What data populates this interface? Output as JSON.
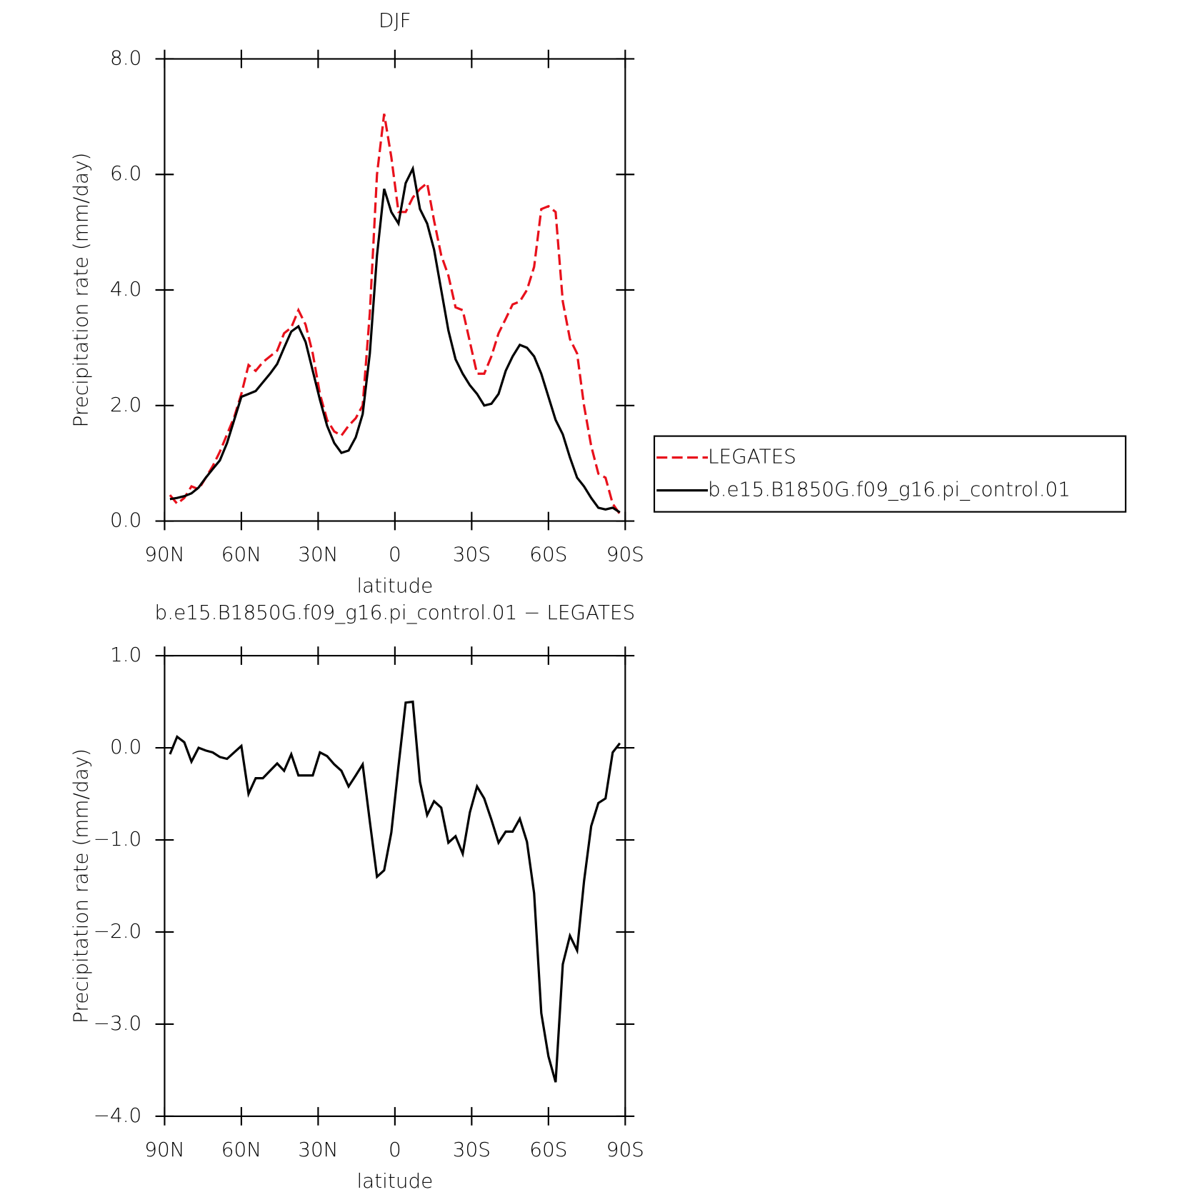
{
  "chart_data": [
    {
      "type": "line",
      "title": "DJF",
      "x_label": "latitude",
      "y_label": "Precipitation rate (mm/day)",
      "x": [
        87.9,
        85.1,
        82.3,
        79.5,
        76.7,
        73.9,
        71.2,
        68.4,
        65.6,
        62.8,
        60.0,
        57.2,
        54.4,
        51.6,
        48.8,
        46.0,
        43.3,
        40.5,
        37.7,
        34.9,
        32.1,
        29.3,
        26.5,
        23.7,
        20.9,
        18.1,
        15.3,
        12.6,
        9.8,
        7.0,
        4.2,
        1.4,
        -1.4,
        -4.2,
        -7.0,
        -9.8,
        -12.6,
        -15.3,
        -18.1,
        -20.9,
        -23.7,
        -26.5,
        -29.3,
        -32.1,
        -34.9,
        -37.7,
        -40.5,
        -43.3,
        -46.0,
        -48.8,
        -51.6,
        -54.4,
        -57.2,
        -60.0,
        -62.8,
        -65.6,
        -68.4,
        -71.2,
        -73.9,
        -76.7,
        -79.5,
        -82.3,
        -85.1,
        -87.9
      ],
      "series": [
        {
          "name": "LEGATES",
          "color": "#e8101b",
          "line_style": "dashed",
          "values": [
            0.45,
            0.3,
            0.4,
            0.6,
            0.55,
            0.75,
            0.95,
            1.2,
            1.5,
            1.8,
            2.2,
            2.7,
            2.6,
            2.75,
            2.85,
            2.95,
            3.25,
            3.35,
            3.65,
            3.4,
            2.9,
            2.2,
            1.75,
            1.55,
            1.48,
            1.65,
            1.78,
            2.0,
            3.6,
            6.0,
            7.05,
            6.3,
            5.35,
            5.35,
            5.6,
            5.75,
            5.85,
            5.2,
            4.6,
            4.25,
            3.7,
            3.65,
            3.1,
            2.55,
            2.55,
            2.85,
            3.25,
            3.5,
            3.75,
            3.8,
            4.0,
            4.4,
            5.4,
            5.45,
            5.35,
            3.8,
            3.15,
            2.9,
            2.0,
            1.3,
            0.82,
            0.75,
            0.3,
            0.12
          ]
        },
        {
          "name": "b.e15.B1850G.f09_g16.pi_control.01",
          "color": "#000000",
          "line_style": "solid",
          "values": [
            0.38,
            0.4,
            0.43,
            0.48,
            0.58,
            0.75,
            0.9,
            1.05,
            1.35,
            1.75,
            2.15,
            2.2,
            2.25,
            2.4,
            2.55,
            2.72,
            3.0,
            3.28,
            3.37,
            3.1,
            2.6,
            2.1,
            1.65,
            1.35,
            1.18,
            1.22,
            1.45,
            1.85,
            2.9,
            4.6,
            5.75,
            5.35,
            5.15,
            5.85,
            6.1,
            5.4,
            5.15,
            4.7,
            4.0,
            3.3,
            2.8,
            2.55,
            2.35,
            2.2,
            2.0,
            2.03,
            2.2,
            2.6,
            2.85,
            3.05,
            3.0,
            2.85,
            2.55,
            2.15,
            1.75,
            1.5,
            1.1,
            0.75,
            0.6,
            0.4,
            0.23,
            0.2,
            0.23,
            0.15
          ]
        }
      ],
      "xlim": [
        90,
        -90
      ],
      "xticks": [
        {
          "value": 90,
          "label": "90N"
        },
        {
          "value": 60,
          "label": "60N"
        },
        {
          "value": 30,
          "label": "30N"
        },
        0,
        {
          "value": -30,
          "label": "30S"
        },
        {
          "value": -60,
          "label": "60S"
        },
        {
          "value": -90,
          "label": "90S"
        }
      ],
      "ylim": [
        0,
        8
      ],
      "yticks": [
        {
          "value": 0,
          "label": "0.0"
        },
        {
          "value": 2,
          "label": "2.0"
        },
        {
          "value": 4,
          "label": "4.0"
        },
        {
          "value": 6,
          "label": "6.0"
        },
        {
          "value": 8,
          "label": "8.0"
        }
      ],
      "grid": false,
      "legend": "outside-right"
    },
    {
      "type": "line",
      "title": "b.e15.B1850G.f09_g16.pi_control.01 − LEGATES",
      "x_label": "latitude",
      "y_label": "Precipitation rate (mm/day)",
      "x": [
        87.9,
        85.1,
        82.3,
        79.5,
        76.7,
        73.9,
        71.2,
        68.4,
        65.6,
        62.8,
        60.0,
        57.2,
        54.4,
        51.6,
        48.8,
        46.0,
        43.3,
        40.5,
        37.7,
        34.9,
        32.1,
        29.3,
        26.5,
        23.7,
        20.9,
        18.1,
        15.3,
        12.6,
        9.8,
        7.0,
        4.2,
        1.4,
        -1.4,
        -4.2,
        -7.0,
        -9.8,
        -12.6,
        -15.3,
        -18.1,
        -20.9,
        -23.7,
        -26.5,
        -29.3,
        -32.1,
        -34.9,
        -37.7,
        -40.5,
        -43.3,
        -46.0,
        -48.8,
        -51.6,
        -54.4,
        -57.2,
        -60.0,
        -62.8,
        -65.6,
        -68.4,
        -71.2,
        -73.9,
        -76.7,
        -79.5,
        -82.3,
        -85.1,
        -87.9
      ],
      "series": [
        {
          "color": "#000000",
          "line_style": "solid",
          "values": [
            -0.07,
            0.12,
            0.06,
            -0.15,
            0.0,
            -0.03,
            -0.05,
            -0.1,
            -0.12,
            -0.05,
            0.02,
            -0.5,
            -0.33,
            -0.33,
            -0.25,
            -0.17,
            -0.25,
            -0.07,
            -0.3,
            -0.3,
            -0.3,
            -0.05,
            -0.09,
            -0.18,
            -0.25,
            -0.42,
            -0.3,
            -0.18,
            -0.8,
            -1.4,
            -1.33,
            -0.92,
            -0.2,
            0.49,
            0.5,
            -0.37,
            -0.73,
            -0.58,
            -0.65,
            -1.03,
            -0.96,
            -1.15,
            -0.7,
            -0.42,
            -0.55,
            -0.78,
            -1.03,
            -0.91,
            -0.91,
            -0.77,
            -1.02,
            -1.58,
            -2.88,
            -3.35,
            -3.63,
            -2.35,
            -2.04,
            -2.2,
            -1.45,
            -0.85,
            -0.6,
            -0.55,
            -0.05,
            0.05
          ]
        }
      ],
      "xlim": [
        90,
        -90
      ],
      "xticks": [
        {
          "value": 90,
          "label": "90N"
        },
        {
          "value": 60,
          "label": "60N"
        },
        {
          "value": 30,
          "label": "30N"
        },
        0,
        {
          "value": -30,
          "label": "30S"
        },
        {
          "value": -60,
          "label": "60S"
        },
        {
          "value": -90,
          "label": "90S"
        }
      ],
      "ylim": [
        -4,
        1
      ],
      "yticks": [
        {
          "value": -4,
          "label": "−4.0"
        },
        {
          "value": -3,
          "label": "−3.0"
        },
        {
          "value": -2,
          "label": "−2.0"
        },
        {
          "value": -1,
          "label": "−1.0"
        },
        {
          "value": 0,
          "label": "0.0"
        },
        {
          "value": 1,
          "label": "1.0"
        }
      ],
      "grid": false
    }
  ]
}
